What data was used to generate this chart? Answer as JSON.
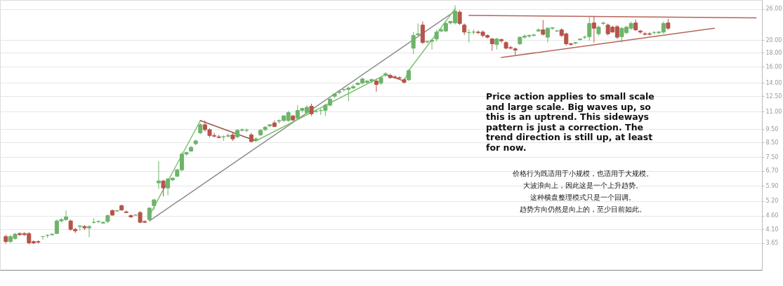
{
  "chart_data": {
    "type": "candlestick",
    "log": "y",
    "grid": "y",
    "tick_labels": "y",
    "categories": [
      null,
      null,
      null,
      null,
      null,
      null,
      null,
      null,
      null,
      null,
      null,
      null,
      null,
      null,
      null,
      null,
      null,
      null,
      null,
      null,
      null,
      null,
      null,
      null,
      null,
      null,
      null,
      null,
      null,
      null,
      null,
      null,
      null,
      null,
      null,
      null,
      null,
      null,
      null,
      null,
      null,
      null,
      null,
      null,
      null,
      null,
      null,
      null,
      null,
      null,
      null,
      null,
      null,
      null,
      null,
      null,
      null,
      null,
      null,
      null,
      null,
      null,
      null,
      null,
      null,
      null,
      null,
      null,
      null,
      null,
      null,
      null,
      null,
      null,
      null,
      null,
      null,
      null,
      null,
      null,
      null,
      null,
      null,
      null,
      null,
      null,
      null,
      null,
      null,
      null,
      null,
      null,
      null,
      null,
      null,
      null,
      null,
      null,
      null,
      null,
      null,
      null,
      null,
      null,
      null,
      null,
      null,
      null,
      null,
      null,
      null,
      null,
      null,
      null,
      null,
      null,
      null,
      null,
      null,
      null,
      null,
      null,
      null,
      null,
      null,
      null,
      null,
      null,
      null,
      null,
      null,
      null,
      null,
      null,
      null,
      null,
      null,
      null,
      null,
      null,
      null,
      null,
      null,
      null,
      null,
      null,
      null,
      null,
      null,
      null,
      null,
      null,
      null,
      null,
      null,
      null,
      null,
      null,
      null,
      null,
      null,
      null,
      null
    ],
    "ylim": [
      2.92,
      28
    ],
    "yticks": [
      {
        "value": 3.65,
        "label": "3.65"
      },
      {
        "value": 4.1,
        "label": "4.10"
      },
      {
        "value": 4.6,
        "label": "4.60"
      },
      {
        "value": 5.2,
        "label": "5.20"
      },
      {
        "value": 5.9,
        "label": "5.90"
      },
      {
        "value": 6.7,
        "label": "6.70"
      },
      {
        "value": 7.5,
        "label": "7.50"
      },
      {
        "value": 8.5,
        "label": "8.50"
      },
      {
        "value": 9.5,
        "label": "9.50"
      },
      {
        "value": 11,
        "label": "11.00"
      },
      {
        "value": 12.5,
        "label": "12.50"
      },
      {
        "value": 14,
        "label": "14.00"
      },
      {
        "value": 16,
        "label": "16.00"
      },
      {
        "value": 18,
        "label": "18.00"
      },
      {
        "value": 20,
        "label": "20.00"
      },
      {
        "value": 26,
        "label": "26.00"
      }
    ],
    "colors": [
      "#b5544a",
      "#6db46a",
      "#6db46a",
      "#b5544a",
      "#b5544a",
      "#b5544a",
      "#b5544a",
      "#b5544a",
      "#6db46a",
      "#6db46a",
      "#6db46a",
      "#6db46a",
      "#6db46a",
      "#6db46a",
      "#b5544a",
      "#b5544a",
      "#6db46a",
      "#b5544a",
      "#6db46a",
      "#6db46a",
      "#6db46a",
      "#6db46a",
      "#6db46a",
      "#b5544a",
      "#6db46a",
      "#b5544a",
      "#b5544a",
      "#b5544a",
      "#6db46a",
      "#b5544a",
      "#b5544a",
      "#6db46a",
      "#6db46a",
      "#6db46a",
      "#b5544a",
      "#6db46a",
      "#6db46a",
      "#6db46a",
      "#6db46a",
      "#6db46a",
      "#6db46a",
      "#6db46a",
      "#6db46a",
      "#b5544a",
      "#b5544a",
      "#b5544a",
      "#b5544a",
      "#6db46a",
      "#6db46a",
      "#b5544a",
      "#6db46a",
      "#6db46a",
      "#6db46a",
      "#b5544a",
      "#6db46a",
      "#6db46a",
      "#6db46a",
      "#6db46a",
      "#b5544a",
      "#6db46a",
      "#6db46a",
      "#6db46a",
      "#b5544a",
      "#6db46a",
      "#6db46a",
      "#6db46a",
      "#b5544a",
      "#6db46a",
      "#6db46a",
      "#6db46a",
      "#6db46a",
      "#6db46a",
      "#6db46a",
      "#6db46a",
      "#6db46a",
      "#6db46a",
      "#6db46a",
      "#6db46a",
      "#6db46a",
      "#6db46a",
      "#b5544a",
      "#6db46a",
      "#6db46a",
      "#b5544a",
      "#b5544a",
      "#b5544a",
      "#b5544a",
      "#6db46a",
      "#6db46a",
      "#6db46a",
      "#b5544a",
      "#6db46a",
      "#6db46a",
      "#6db46a",
      "#6db46a",
      "#6db46a",
      "#6db46a",
      "#6db46a",
      "#b5544a",
      "#b5544a",
      "#6db46a",
      "#6db46a",
      "#b5544a",
      "#b5544a",
      "#b5544a",
      "#b5544a",
      "#6db46a",
      "#b5544a",
      "#b5544a",
      "#b5544a",
      "#b5544a",
      "#6db46a",
      "#6db46a",
      "#6db46a",
      "#6db46a",
      "#6db46a",
      "#b5544a",
      "#6db46a",
      "#6db46a",
      "#6db46a",
      "#b5544a",
      "#b5544a",
      "#b5544a",
      "#6db46a",
      "#6db46a",
      "#6db46a",
      "#6db46a",
      "#b5544a",
      "#6db46a",
      "#6db46a",
      "#b5544a",
      "#b5544a",
      "#b5544a",
      "#6db46a",
      "#6db46a",
      "#6db46a",
      "#b5544a",
      "#b5544a",
      "#b5544a",
      "#b5544a",
      "#6db46a",
      "#6db46a",
      "#6db46a",
      "#b5544a",
      null,
      null,
      null,
      null,
      null,
      null,
      null,
      null,
      null,
      null,
      null,
      null,
      null,
      null,
      null,
      null,
      null,
      null,
      null
    ],
    "ohlc": [
      [
        3.86,
        3.92,
        3.64,
        3.7
      ],
      [
        3.7,
        3.92,
        3.66,
        3.86
      ],
      [
        3.8,
        3.98,
        3.76,
        3.94
      ],
      [
        3.96,
        4.0,
        3.88,
        3.92
      ],
      [
        3.96,
        4.0,
        3.88,
        3.92
      ],
      [
        3.96,
        4.0,
        3.62,
        3.66
      ],
      [
        3.7,
        3.74,
        3.62,
        3.66
      ],
      [
        3.7,
        3.74,
        3.64,
        3.68
      ],
      [
        3.86,
        3.88,
        3.76,
        3.86
      ],
      [
        3.9,
        3.94,
        3.82,
        3.9
      ],
      [
        3.92,
        3.96,
        3.88,
        3.94
      ],
      [
        3.96,
        4.45,
        3.94,
        4.4
      ],
      [
        4.4,
        4.5,
        4.36,
        4.45
      ],
      [
        4.45,
        4.8,
        4.4,
        4.55
      ],
      [
        4.4,
        4.45,
        4.05,
        4.1
      ],
      [
        4.1,
        4.15,
        3.98,
        4.05
      ],
      [
        4.2,
        4.25,
        4.05,
        4.22
      ],
      [
        4.2,
        4.25,
        4.07,
        4.15
      ],
      [
        4.15,
        4.25,
        3.84,
        4.2
      ],
      [
        4.35,
        4.5,
        4.3,
        4.35
      ],
      [
        4.38,
        4.42,
        4.32,
        4.38
      ],
      [
        4.32,
        4.38,
        4.3,
        4.35
      ],
      [
        4.38,
        4.65,
        4.32,
        4.6
      ],
      [
        4.8,
        4.85,
        4.6,
        4.62
      ],
      [
        4.78,
        4.82,
        4.75,
        4.8
      ],
      [
        5.0,
        5.05,
        4.8,
        4.82
      ],
      [
        4.75,
        4.8,
        4.7,
        4.72
      ],
      [
        4.6,
        4.65,
        4.52,
        4.55
      ],
      [
        4.62,
        4.65,
        4.6,
        4.62
      ],
      [
        4.72,
        4.78,
        4.32,
        4.35
      ],
      [
        4.38,
        4.42,
        4.32,
        4.35
      ],
      [
        4.45,
        4.92,
        4.4,
        4.9
      ],
      [
        5.0,
        5.3,
        4.82,
        5.25
      ],
      [
        6.05,
        7.25,
        5.75,
        6.15
      ],
      [
        6.15,
        6.2,
        5.4,
        5.8
      ],
      [
        5.8,
        6.3,
        5.45,
        6.25
      ],
      [
        6.2,
        6.3,
        6.15,
        6.3
      ],
      [
        6.4,
        6.8,
        6.35,
        6.75
      ],
      [
        6.75,
        7.8,
        6.65,
        7.7
      ],
      [
        7.7,
        7.85,
        7.6,
        7.8
      ],
      [
        7.9,
        8.25,
        7.85,
        8.15
      ],
      [
        8.4,
        8.7,
        8.3,
        8.6
      ],
      [
        9.2,
        10.0,
        9.1,
        9.85
      ],
      [
        9.85,
        10.2,
        9.3,
        9.45
      ],
      [
        9.45,
        9.55,
        8.85,
        9.0
      ],
      [
        9.0,
        9.2,
        8.85,
        8.95
      ],
      [
        8.9,
        9.05,
        8.8,
        8.85
      ],
      [
        8.9,
        9.0,
        8.6,
        8.9
      ],
      [
        8.95,
        9.15,
        8.85,
        9.0
      ],
      [
        9.05,
        9.2,
        8.6,
        8.75
      ],
      [
        8.9,
        9.5,
        8.8,
        9.4
      ],
      [
        9.4,
        9.55,
        9.3,
        9.45
      ],
      [
        9.4,
        9.55,
        9.25,
        9.4
      ],
      [
        9.05,
        9.2,
        8.5,
        8.55
      ],
      [
        8.65,
        8.85,
        8.55,
        8.75
      ],
      [
        9.05,
        9.5,
        8.95,
        9.4
      ],
      [
        9.45,
        9.75,
        9.35,
        9.65
      ],
      [
        9.75,
        9.9,
        9.65,
        9.85
      ],
      [
        10.0,
        10.2,
        9.65,
        9.7
      ],
      [
        10.15,
        10.3,
        9.95,
        10.2
      ],
      [
        10.2,
        10.7,
        10.1,
        10.6
      ],
      [
        10.2,
        11.05,
        10.1,
        10.9
      ],
      [
        10.6,
        10.7,
        10.15,
        10.25
      ],
      [
        10.4,
        11.6,
        10.3,
        11.1
      ],
      [
        11.1,
        11.3,
        10.9,
        11.3
      ],
      [
        10.9,
        11.6,
        10.8,
        11.4
      ],
      [
        11.5,
        11.75,
        10.6,
        10.8
      ],
      [
        11.0,
        11.2,
        10.9,
        11.0
      ],
      [
        11.1,
        11.3,
        10.7,
        11.1
      ],
      [
        11.1,
        11.75,
        10.6,
        11.6
      ],
      [
        11.6,
        12.3,
        11.5,
        12.2
      ],
      [
        12.5,
        12.8,
        12.3,
        12.75
      ],
      [
        12.9,
        13.2,
        12.7,
        13.0
      ],
      [
        13.2,
        13.3,
        13.0,
        13.25
      ],
      [
        13.25,
        13.55,
        12.0,
        13.4
      ],
      [
        13.4,
        13.8,
        13.25,
        13.55
      ],
      [
        13.8,
        14.05,
        13.7,
        13.95
      ],
      [
        13.95,
        14.6,
        13.8,
        14.45
      ],
      [
        14.05,
        14.3,
        13.9,
        14.2
      ],
      [
        14.2,
        14.45,
        13.95,
        14.4
      ],
      [
        14.2,
        14.45,
        13.0,
        13.8
      ],
      [
        13.95,
        14.8,
        13.75,
        14.6
      ],
      [
        14.9,
        15.3,
        14.7,
        15.1
      ],
      [
        14.9,
        15.1,
        14.5,
        14.6
      ],
      [
        14.7,
        14.9,
        14.5,
        14.6
      ],
      [
        14.6,
        14.8,
        14.4,
        14.55
      ],
      [
        14.35,
        14.55,
        13.9,
        14.05
      ],
      [
        14.35,
        15.7,
        14.2,
        15.5
      ],
      [
        18.7,
        21.4,
        17.8,
        20.8
      ],
      [
        20.9,
        23.0,
        20.8,
        21.1
      ],
      [
        22.7,
        23.4,
        19.4,
        19.6
      ],
      [
        19.7,
        19.9,
        19.5,
        19.8
      ],
      [
        19.8,
        20.2,
        18.5,
        20.0
      ],
      [
        20.2,
        21.8,
        19.8,
        21.4
      ],
      [
        21.6,
        22.1,
        21.4,
        21.8
      ],
      [
        21.6,
        23.4,
        21.4,
        23.0
      ],
      [
        23.1,
        23.5,
        22.8,
        23.4
      ],
      [
        23.1,
        26.8,
        22.8,
        25.5
      ],
      [
        25.3,
        25.7,
        22.7,
        23.0
      ],
      [
        22.7,
        23.0,
        20.9,
        21.4
      ],
      [
        21.3,
        21.9,
        19.6,
        21.3
      ],
      [
        21.4,
        21.9,
        21.0,
        21.4
      ],
      [
        21.4,
        21.7,
        21.0,
        21.3
      ],
      [
        21.4,
        21.7,
        20.5,
        20.8
      ],
      [
        20.8,
        21.0,
        20.3,
        20.5
      ],
      [
        20.2,
        20.4,
        18.3,
        19.4
      ],
      [
        19.3,
        20.4,
        18.5,
        20.2
      ],
      [
        20.1,
        20.3,
        19.6,
        19.9
      ],
      [
        19.6,
        19.8,
        18.5,
        18.7
      ],
      [
        18.8,
        19.1,
        18.5,
        18.7
      ],
      [
        18.6,
        18.8,
        17.7,
        18.4
      ],
      [
        19.4,
        20.6,
        19.2,
        20.5
      ],
      [
        20.5,
        21.0,
        20.3,
        20.7
      ],
      [
        20.7,
        21.0,
        20.4,
        20.8
      ],
      [
        20.8,
        21.1,
        20.6,
        20.9
      ],
      [
        21.6,
        22.1,
        21.4,
        21.8
      ],
      [
        21.8,
        23.7,
        20.8,
        21.0
      ],
      [
        20.5,
        22.3,
        19.6,
        22.1
      ],
      [
        22.1,
        22.3,
        21.8,
        22.2
      ],
      [
        21.6,
        21.8,
        21.4,
        21.6
      ],
      [
        21.8,
        22.1,
        20.5,
        20.8
      ],
      [
        21.1,
        21.3,
        19.1,
        19.4
      ],
      [
        19.4,
        19.6,
        19.1,
        19.3
      ],
      [
        19.5,
        19.7,
        19.3,
        19.6
      ],
      [
        20.1,
        20.3,
        19.9,
        20.2
      ],
      [
        20.5,
        20.8,
        20.2,
        20.5
      ],
      [
        20.6,
        24.5,
        19.9,
        23.0
      ],
      [
        23.1,
        24.5,
        19.6,
        22.1
      ],
      [
        21.1,
        22.6,
        20.8,
        22.3
      ],
      [
        23.0,
        23.3,
        22.7,
        23.1
      ],
      [
        22.7,
        23.0,
        20.8,
        21.1
      ],
      [
        22.3,
        22.6,
        21.3,
        21.4
      ],
      [
        22.4,
        22.7,
        20.2,
        20.5
      ],
      [
        20.6,
        22.3,
        19.6,
        22.1
      ],
      [
        21.3,
        22.6,
        21.0,
        22.3
      ],
      [
        22.1,
        23.4,
        21.8,
        23.0
      ],
      [
        23.1,
        23.8,
        21.6,
        21.8
      ],
      [
        21.6,
        21.8,
        21.1,
        21.4
      ],
      [
        21.1,
        21.4,
        20.8,
        21.0
      ],
      [
        21.1,
        21.4,
        20.8,
        21.0
      ],
      [
        21.3,
        21.6,
        21.0,
        21.3
      ],
      [
        21.3,
        21.6,
        21.0,
        21.4
      ],
      [
        21.4,
        23.4,
        21.1,
        23.0
      ],
      [
        23.1,
        23.9,
        21.8,
        22.1
      ],
      null,
      null,
      null,
      null,
      null,
      null,
      null,
      null,
      null,
      null,
      null,
      null,
      null,
      null,
      null,
      null,
      null,
      null,
      null
    ],
    "series": [
      {
        "type": "line",
        "color": "#b5655a",
        "values": [
          null,
          null,
          null,
          null,
          null,
          null,
          null,
          null,
          null,
          null,
          null,
          null,
          null,
          null,
          null,
          null,
          null,
          null,
          null,
          null,
          null,
          null,
          null,
          null,
          null,
          null,
          null,
          null,
          null,
          null,
          null,
          null,
          null,
          null,
          null,
          null,
          null,
          null,
          null,
          null,
          null,
          null,
          null,
          null,
          null,
          null,
          null,
          null,
          null,
          null,
          null,
          null,
          null,
          null,
          null,
          null,
          null,
          null,
          null,
          null,
          null,
          null,
          null,
          null,
          null,
          null,
          null,
          null,
          null,
          null,
          null,
          null,
          null,
          null,
          null,
          null,
          null,
          null,
          null,
          null,
          null,
          null,
          null,
          null,
          null,
          null,
          null,
          null,
          null,
          null,
          null,
          null,
          null,
          null,
          null,
          null,
          null,
          null,
          null,
          null,
          24.6,
          null,
          null,
          null,
          null,
          null,
          null,
          null,
          null,
          null,
          null,
          null,
          null,
          null,
          null,
          null,
          null,
          null,
          null,
          null,
          null,
          null,
          null,
          null,
          null,
          null,
          null,
          null,
          null,
          null,
          null,
          null,
          null,
          null,
          null,
          null,
          null,
          null,
          null,
          null,
          null,
          null,
          null,
          null,
          null,
          null,
          null,
          null,
          null,
          null,
          null,
          null,
          null,
          null,
          null,
          null,
          null,
          null,
          null,
          null,
          null,
          null,
          24.1
        ]
      },
      {
        "type": "line",
        "color": "#b5655a",
        "values": [
          null,
          null,
          null,
          null,
          null,
          null,
          null,
          null,
          null,
          null,
          null,
          null,
          null,
          null,
          null,
          null,
          null,
          null,
          null,
          null,
          null,
          null,
          null,
          null,
          null,
          null,
          null,
          null,
          null,
          null,
          null,
          null,
          null,
          null,
          null,
          null,
          null,
          null,
          null,
          null,
          null,
          null,
          null,
          null,
          null,
          null,
          null,
          null,
          null,
          null,
          null,
          null,
          null,
          null,
          null,
          null,
          null,
          null,
          null,
          null,
          null,
          null,
          null,
          null,
          null,
          null,
          null,
          null,
          null,
          null,
          null,
          null,
          null,
          null,
          null,
          null,
          null,
          null,
          null,
          null,
          null,
          null,
          null,
          null,
          null,
          null,
          null,
          null,
          null,
          null,
          null,
          null,
          null,
          null,
          null,
          null,
          null,
          null,
          null,
          null,
          null,
          null,
          null,
          null,
          null,
          null,
          null,
          17.3,
          null,
          null,
          null,
          null,
          null,
          null,
          null,
          null,
          null,
          null,
          null,
          null,
          null,
          null,
          null,
          null,
          null,
          null,
          null,
          null,
          null,
          null,
          null,
          null,
          null,
          null,
          null,
          null,
          null,
          null,
          null,
          null,
          null,
          null,
          null,
          null,
          null,
          null,
          null,
          null,
          null,
          null,
          null,
          null,
          null,
          22.1,
          null,
          null,
          null,
          null,
          null,
          null,
          null,
          null,
          null
        ]
      },
      {
        "type": "line",
        "color": "#8a8a8a",
        "values": [
          null,
          null,
          null,
          null,
          null,
          null,
          null,
          null,
          null,
          null,
          null,
          null,
          null,
          null,
          null,
          null,
          null,
          null,
          null,
          null,
          null,
          null,
          null,
          null,
          null,
          null,
          null,
          null,
          null,
          null,
          null,
          4.4,
          null,
          null,
          null,
          null,
          null,
          null,
          null,
          null,
          null,
          null,
          null,
          null,
          null,
          null,
          null,
          null,
          null,
          null,
          null,
          null,
          null,
          null,
          null,
          null,
          null,
          null,
          null,
          null,
          null,
          null,
          null,
          null,
          null,
          null,
          null,
          null,
          null,
          null,
          null,
          null,
          null,
          null,
          null,
          null,
          null,
          null,
          null,
          null,
          null,
          null,
          null,
          null,
          null,
          null,
          null,
          null,
          null,
          null,
          null,
          null,
          null,
          null,
          null,
          null,
          null,
          25.5,
          null,
          null,
          null,
          null,
          null,
          null,
          null,
          null,
          null,
          null,
          null,
          null,
          null,
          null,
          null,
          null,
          null,
          null,
          null,
          null,
          null,
          null,
          null,
          null,
          null,
          null,
          null,
          null,
          null,
          null,
          null,
          null,
          null,
          null,
          null,
          null,
          null,
          null,
          null,
          null,
          null,
          null,
          null,
          null,
          null,
          null,
          null,
          null,
          null,
          null,
          null,
          null,
          null,
          null,
          null,
          null,
          null,
          null,
          null,
          null,
          null,
          null,
          null,
          null,
          null
        ]
      },
      {
        "type": "line",
        "color": "#7dc36b",
        "values": [
          null,
          null,
          null,
          null,
          null,
          null,
          null,
          null,
          null,
          null,
          null,
          null,
          null,
          null,
          null,
          null,
          null,
          null,
          null,
          null,
          null,
          null,
          null,
          null,
          null,
          null,
          null,
          null,
          null,
          null,
          null,
          4.6,
          null,
          null,
          null,
          null,
          null,
          null,
          null,
          null,
          null,
          null,
          10.2,
          null,
          null,
          null,
          null,
          null,
          null,
          null,
          null,
          null,
          null,
          null,
          null,
          null,
          null,
          null,
          null,
          null,
          null,
          null,
          null,
          null,
          null,
          null,
          null,
          null,
          null,
          null,
          null,
          null,
          null,
          null,
          null,
          null,
          null,
          null,
          null,
          null,
          null,
          null,
          null,
          null,
          null,
          null,
          null,
          null,
          null,
          null,
          null,
          null,
          null,
          null,
          null,
          null,
          null,
          null,
          null,
          null,
          null,
          null,
          null,
          null,
          null,
          null,
          null,
          null,
          null,
          null,
          null,
          null,
          null,
          null,
          null,
          null,
          null,
          null,
          null,
          null,
          null,
          null,
          null,
          null,
          null,
          null,
          null,
          null,
          null,
          null,
          null,
          null,
          null,
          null,
          null,
          null,
          null,
          null,
          null,
          null,
          null,
          null,
          null,
          null,
          null,
          null,
          null,
          null,
          null,
          null,
          null,
          null,
          null,
          null,
          null,
          null,
          null,
          null,
          null,
          null,
          null,
          null,
          null
        ]
      },
      {
        "type": "line",
        "color": "#a0524a",
        "values": [
          null,
          null,
          null,
          null,
          null,
          null,
          null,
          null,
          null,
          null,
          null,
          null,
          null,
          null,
          null,
          null,
          null,
          null,
          null,
          null,
          null,
          null,
          null,
          null,
          null,
          null,
          null,
          null,
          null,
          null,
          null,
          null,
          null,
          null,
          null,
          null,
          null,
          null,
          null,
          null,
          null,
          null,
          10.2,
          null,
          null,
          null,
          null,
          null,
          null,
          null,
          null,
          null,
          null,
          null,
          8.6,
          null,
          null,
          null,
          null,
          null,
          null,
          null,
          null,
          null,
          null,
          null,
          null,
          null,
          null,
          null,
          null,
          null,
          null,
          null,
          null,
          null,
          null,
          null,
          null,
          null,
          null,
          null,
          null,
          null,
          null,
          null,
          null,
          null,
          null,
          null,
          null,
          null,
          null,
          null,
          null,
          null,
          null,
          null,
          null,
          null,
          null,
          null,
          null,
          null,
          null,
          null,
          null,
          null,
          null,
          null,
          null,
          null,
          null,
          null,
          null,
          null,
          null,
          null,
          null,
          null,
          null,
          null,
          null,
          null,
          null,
          null,
          null,
          null,
          null,
          null,
          null,
          null,
          null,
          null,
          null,
          null,
          null,
          null,
          null,
          null,
          null,
          null,
          null,
          null,
          null,
          null,
          null,
          null,
          null,
          null,
          null,
          null,
          null,
          null,
          null,
          null,
          null,
          null,
          null,
          null,
          null,
          null,
          null
        ]
      },
      {
        "type": "line",
        "color": "#7dc36b",
        "values": [
          null,
          null,
          null,
          null,
          null,
          null,
          null,
          null,
          null,
          null,
          null,
          null,
          null,
          null,
          null,
          null,
          null,
          null,
          null,
          null,
          null,
          null,
          null,
          null,
          null,
          null,
          null,
          null,
          null,
          null,
          null,
          null,
          null,
          null,
          null,
          null,
          null,
          null,
          null,
          null,
          null,
          null,
          null,
          null,
          null,
          null,
          null,
          null,
          null,
          null,
          null,
          null,
          null,
          null,
          8.6,
          null,
          null,
          null,
          null,
          null,
          null,
          null,
          null,
          null,
          null,
          null,
          null,
          null,
          null,
          null,
          null,
          null,
          null,
          null,
          null,
          null,
          null,
          null,
          null,
          null,
          null,
          null,
          15.0,
          null,
          null,
          null,
          null,
          null,
          null,
          null,
          null,
          null,
          null,
          null,
          null,
          null,
          null,
          null,
          null,
          null,
          null,
          null,
          null,
          null,
          null,
          null,
          null,
          null,
          null,
          null,
          null,
          null,
          null,
          null,
          null,
          null,
          null,
          null,
          null,
          null,
          null,
          null,
          null,
          null,
          null,
          null,
          null,
          null,
          null,
          null,
          null,
          null,
          null,
          null,
          null,
          null,
          null,
          null,
          null,
          null,
          null,
          null,
          null,
          null,
          null,
          null,
          null,
          null,
          null,
          null,
          null,
          null,
          null,
          null,
          null,
          null,
          null,
          null,
          null,
          null,
          null,
          null,
          null
        ]
      },
      {
        "type": "line",
        "color": "#a0524a",
        "values": [
          null,
          null,
          null,
          null,
          null,
          null,
          null,
          null,
          null,
          null,
          null,
          null,
          null,
          null,
          null,
          null,
          null,
          null,
          null,
          null,
          null,
          null,
          null,
          null,
          null,
          null,
          null,
          null,
          null,
          null,
          null,
          null,
          null,
          null,
          null,
          null,
          null,
          null,
          null,
          null,
          null,
          null,
          null,
          null,
          null,
          null,
          null,
          null,
          null,
          null,
          null,
          null,
          null,
          null,
          null,
          null,
          null,
          null,
          null,
          null,
          null,
          null,
          null,
          null,
          null,
          null,
          null,
          null,
          null,
          null,
          null,
          null,
          null,
          null,
          null,
          null,
          null,
          null,
          null,
          null,
          null,
          null,
          15.0,
          null,
          null,
          null,
          14.2,
          null,
          null,
          null,
          null,
          null,
          null,
          null,
          null,
          null,
          null,
          null,
          null,
          null,
          null,
          null,
          null,
          null,
          null,
          null,
          null,
          null,
          null,
          null,
          null,
          null,
          null,
          null,
          null,
          null,
          null,
          null,
          null,
          null,
          null,
          null,
          null,
          null,
          null,
          null,
          null,
          null,
          null,
          null,
          null,
          null,
          null,
          null,
          null,
          null,
          null,
          null,
          null,
          null,
          null,
          null,
          null,
          null,
          null,
          null,
          null,
          null,
          null,
          null,
          null,
          null,
          null,
          null,
          null,
          null,
          null,
          null,
          null,
          null,
          null,
          null,
          null
        ]
      },
      {
        "type": "line",
        "color": "#7dc36b",
        "values": [
          null,
          null,
          null,
          null,
          null,
          null,
          null,
          null,
          null,
          null,
          null,
          null,
          null,
          null,
          null,
          null,
          null,
          null,
          null,
          null,
          null,
          null,
          null,
          null,
          null,
          null,
          null,
          null,
          null,
          null,
          null,
          null,
          null,
          null,
          null,
          null,
          null,
          null,
          null,
          null,
          null,
          null,
          null,
          null,
          null,
          null,
          null,
          null,
          null,
          null,
          null,
          null,
          null,
          null,
          null,
          null,
          null,
          null,
          null,
          null,
          null,
          null,
          null,
          null,
          null,
          null,
          null,
          null,
          null,
          null,
          null,
          null,
          null,
          null,
          null,
          null,
          null,
          null,
          null,
          null,
          null,
          null,
          null,
          null,
          null,
          null,
          14.2,
          15.5,
          null,
          null,
          null,
          null,
          null,
          null,
          null,
          null,
          null,
          26.0,
          null,
          null,
          null,
          null,
          null,
          null,
          null,
          null,
          null,
          null,
          null,
          null,
          null,
          null,
          null,
          null,
          null,
          null,
          null,
          null,
          null,
          null,
          null,
          null,
          null,
          null,
          null,
          null,
          null,
          null,
          null,
          null,
          null,
          null,
          null,
          null,
          null,
          null,
          null,
          null,
          null,
          null,
          null,
          null,
          null,
          null,
          null,
          null,
          null,
          null,
          null,
          null,
          null,
          null,
          null,
          null,
          null,
          null,
          null,
          null,
          null,
          null,
          null,
          null,
          null
        ]
      }
    ],
    "annotations": [
      "Price action applies to small scale\nand large scale. Big waves up, so\nthis is an uptrend. This sideways\npattern is just a correction. The\ntrend direction is still up, at least\nfor now.",
      "价格行为既适用于小规模，也适用于大规模。",
      "大波浪向上，因此这是一个上升趋势。",
      "这种横盘整理模式只是一个回调。",
      "趋势方向仍然是向上的，至少目前如此。"
    ]
  }
}
